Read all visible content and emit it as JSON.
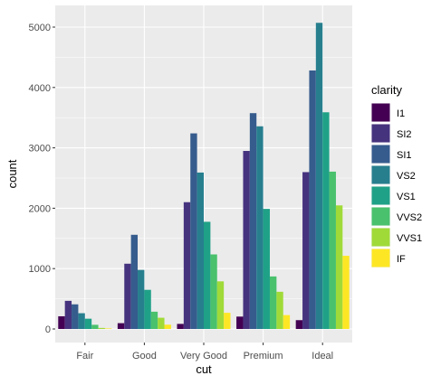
{
  "chart_data": {
    "type": "bar",
    "xlabel": "cut",
    "ylabel": "count",
    "categories": [
      "Fair",
      "Good",
      "Very Good",
      "Premium",
      "Ideal"
    ],
    "ylim": [
      0,
      5000
    ],
    "yticks": [
      0,
      1000,
      2000,
      3000,
      4000,
      5000
    ],
    "grid": true,
    "legend": {
      "title": "clarity",
      "position": "right"
    },
    "series": [
      {
        "name": "I1",
        "color": "#440154",
        "values": [
          210,
          96,
          84,
          205,
          146
        ]
      },
      {
        "name": "SI2",
        "color": "#46337E",
        "values": [
          466,
          1081,
          2100,
          2949,
          2598
        ]
      },
      {
        "name": "SI1",
        "color": "#365C8D",
        "values": [
          408,
          1560,
          3240,
          3575,
          4282
        ]
      },
      {
        "name": "VS2",
        "color": "#277F8E",
        "values": [
          261,
          978,
          2591,
          3357,
          5071
        ]
      },
      {
        "name": "VS1",
        "color": "#1FA187",
        "values": [
          170,
          648,
          1775,
          1989,
          3589
        ]
      },
      {
        "name": "VVS2",
        "color": "#4AC16D",
        "values": [
          69,
          286,
          1235,
          870,
          2606
        ]
      },
      {
        "name": "VVS1",
        "color": "#A0DA39",
        "values": [
          17,
          186,
          789,
          616,
          2047
        ]
      },
      {
        "name": "IF",
        "color": "#FDE725",
        "values": [
          9,
          71,
          268,
          230,
          1212
        ]
      }
    ]
  }
}
